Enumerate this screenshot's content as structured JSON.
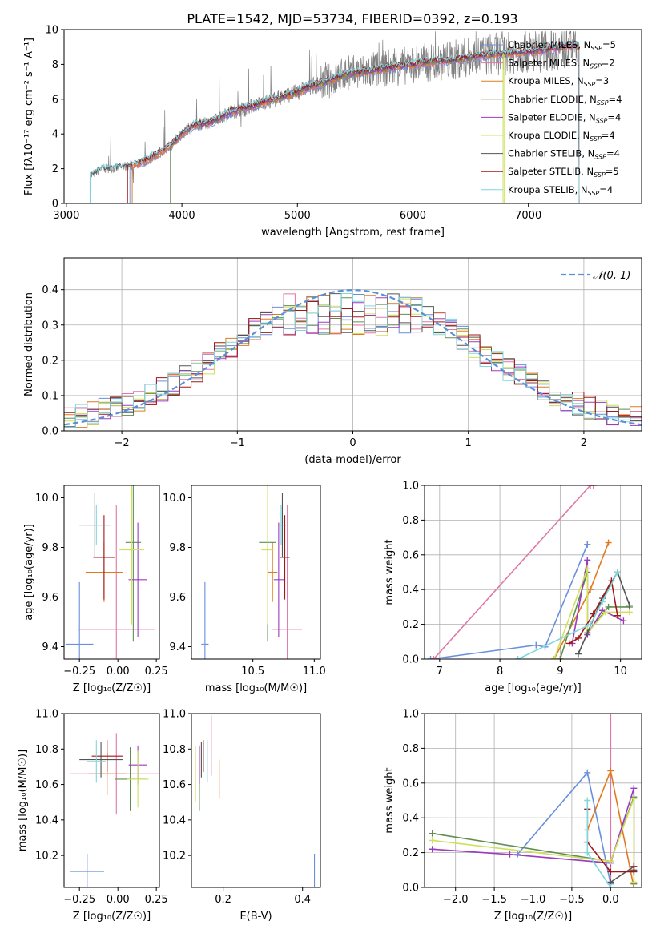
{
  "title": "PLATE=1542, MJD=53734, FIBERID=0392, z=0.193",
  "colors": {
    "chabrier_miles": "#6a8fdc",
    "salpeter_miles": "#e077a7",
    "kroupa_miles": "#e07a1f",
    "chabrier_elodie": "#5f8f50",
    "salpeter_elodie": "#9b3bc0",
    "kroupa_elodie": "#cfe05a",
    "chabrier_stelib": "#555555",
    "salpeter_stelib": "#a01818",
    "kroupa_stelib": "#7fd6dc",
    "spectrum": "#808080",
    "normal": "#5b8fd6"
  },
  "chart_data": [
    {
      "type": "line",
      "xlabel": "wavelength [Angstrom, rest frame]",
      "ylabel": "Flux [fλ10⁻¹⁷ erg cm⁻² s⁻¹ A⁻¹]",
      "xlim": [
        2980,
        7980
      ],
      "ylim": [
        0,
        10
      ],
      "xticks": [
        "3000",
        "4000",
        "5000",
        "6000",
        "7000"
      ],
      "yticks": [
        "0",
        "2",
        "4",
        "6",
        "8",
        "10"
      ],
      "grid": false,
      "legend_position": "right",
      "legend": [
        "Chabrier MILES, N_SSP=5",
        "Salpeter MILES, N_SSP=2",
        "Kroupa MILES, N_SSP=3",
        "Chabrier ELODIE, N_SSP=4",
        "Salpeter ELODIE, N_SSP=4",
        "Kroupa ELODIE, N_SSP=4",
        "Chabrier STELIB, N_SSP=4",
        "Salpeter STELIB, N_SSP=5",
        "Kroupa STELIB, N_SSP=4"
      ],
      "spectrum_x": [
        3200,
        3300,
        3400,
        3500,
        3600,
        3700,
        3800,
        3900,
        4000,
        4100,
        4200,
        4300,
        4400,
        4500,
        4600,
        4700,
        4800,
        4900,
        5000,
        5100,
        5200,
        5300,
        5400,
        5500,
        5600,
        5700,
        5800,
        5900,
        6000,
        6100,
        6200,
        6300,
        6400,
        6500,
        6600,
        6700,
        6800,
        6900,
        7000,
        7100,
        7200,
        7300,
        7400,
        7500
      ],
      "spectrum_y": [
        1.5,
        2.0,
        2.0,
        2.1,
        2.2,
        2.5,
        2.9,
        3.3,
        4.0,
        4.5,
        4.6,
        4.8,
        5.2,
        5.4,
        5.6,
        5.8,
        6.0,
        6.2,
        6.4,
        6.7,
        6.9,
        7.1,
        7.4,
        7.5,
        7.6,
        7.7,
        7.8,
        7.9,
        8.0,
        8.1,
        8.2,
        8.2,
        8.3,
        8.4,
        8.5,
        8.6,
        8.6,
        8.7,
        8.7,
        8.8,
        8.9,
        9.0,
        9.1,
        9.1
      ],
      "model_start": [
        3550,
        3560,
        3570,
        3900,
        3905,
        6780,
        3210,
        3530,
        3205
      ],
      "model_end": [
        7440,
        7440,
        7440,
        7440,
        7440,
        6790,
        7440,
        7440,
        7440
      ]
    },
    {
      "type": "histogram",
      "xlabel": "(data-model)/error",
      "ylabel": "Normed distribution",
      "xlim": [
        -2.5,
        2.5
      ],
      "ylim": [
        0,
        0.49
      ],
      "xticks": [
        "−2",
        "−1",
        "0",
        "1",
        "2"
      ],
      "yticks": [
        "0.0",
        "0.1",
        "0.2",
        "0.3",
        "0.4"
      ],
      "grid": true,
      "legend": [
        "𝒩(0, 1)"
      ],
      "bin_width": 0.1
    },
    {
      "type": "scatter",
      "xlabel": "Z [log₁₀(Z/Z☉)]",
      "ylabel": "age  [log₁₀(age/yr)]",
      "xlim": [
        -0.35,
        0.27
      ],
      "ylim": [
        9.35,
        10.05
      ],
      "xticks": [
        "−0.25",
        "0.00",
        "0.25"
      ],
      "yticks": [
        "9.4",
        "9.6",
        "9.8",
        "10.0"
      ],
      "points": [
        {
          "x": -0.25,
          "y": 9.41,
          "xerr": 0.09,
          "yerr": 0.25
        },
        {
          "x": -0.01,
          "y": 9.47,
          "xerr": 0.25,
          "yerr": 0.5
        },
        {
          "x": -0.09,
          "y": 9.7,
          "xerr": 0.12,
          "yerr": 0.12
        },
        {
          "x": 0.1,
          "y": 9.82,
          "xerr": 0.05,
          "yerr": 0.4
        },
        {
          "x": 0.13,
          "y": 9.67,
          "xerr": 0.06,
          "yerr": 0.23
        },
        {
          "x": 0.09,
          "y": 9.79,
          "xerr": 0.08,
          "yerr": 0.3
        },
        {
          "x": -0.15,
          "y": 9.89,
          "xerr": 0.1,
          "yerr": 0.13
        },
        {
          "x": -0.09,
          "y": 9.76,
          "xerr": 0.07,
          "yerr": 0.17
        },
        {
          "x": -0.14,
          "y": 9.89,
          "xerr": 0.08,
          "yerr": 0.08
        }
      ]
    },
    {
      "type": "scatter",
      "xlabel": "mass [log₁₀(M/M☉)]",
      "ylabel": "",
      "xlim": [
        10.0,
        11.05
      ],
      "ylim": [
        9.35,
        10.05
      ],
      "xticks": [
        "10.5",
        "11.0"
      ],
      "yticks": [
        "9.4",
        "9.6",
        "9.8",
        "10.0"
      ],
      "points": [
        {
          "x": 10.11,
          "y": 9.41,
          "xerr": 0.03,
          "yerr": 0.25
        },
        {
          "x": 10.78,
          "y": 9.47,
          "xerr": 0.12,
          "yerr": 0.5
        },
        {
          "x": 10.66,
          "y": 9.7,
          "xerr": 0.04,
          "yerr": 0.12
        },
        {
          "x": 10.62,
          "y": 9.82,
          "xerr": 0.07,
          "yerr": 0.4
        },
        {
          "x": 10.71,
          "y": 9.67,
          "xerr": 0.04,
          "yerr": 0.23
        },
        {
          "x": 10.62,
          "y": 9.79,
          "xerr": 0.05,
          "yerr": 0.3
        },
        {
          "x": 10.74,
          "y": 9.89,
          "xerr": 0.03,
          "yerr": 0.13
        },
        {
          "x": 10.76,
          "y": 9.76,
          "xerr": 0.04,
          "yerr": 0.17
        },
        {
          "x": 10.73,
          "y": 9.89,
          "xerr": 0.03,
          "yerr": 0.08
        }
      ]
    },
    {
      "type": "line",
      "xlabel": "age  [log₁₀(age/yr)]",
      "ylabel": "mass weight",
      "xlim": [
        6.75,
        10.35
      ],
      "ylim": [
        0,
        1
      ],
      "xticks": [
        "7",
        "8",
        "9",
        "10"
      ],
      "yticks": [
        "0.0",
        "0.2",
        "0.4",
        "0.6",
        "0.8",
        "1.0"
      ],
      "grid": true,
      "series": [
        {
          "x": [
            6.85,
            8.6,
            8.75,
            9.45,
            9.45
          ],
          "y": [
            0.0,
            0.08,
            0.07,
            0.66,
            0.66
          ]
        },
        {
          "x": [
            6.9,
            9.5,
            9.55
          ],
          "y": [
            0.0,
            1.0,
            1.0
          ]
        },
        {
          "x": [
            8.9,
            9.5,
            9.8
          ],
          "y": [
            0.0,
            0.4,
            0.67
          ]
        },
        {
          "x": [
            9.0,
            9.45,
            9.45,
            9.8,
            10.15
          ],
          "y": [
            0.0,
            0.5,
            0.15,
            0.3,
            0.3
          ]
        },
        {
          "x": [
            9.2,
            9.45,
            9.45,
            9.7,
            10.05
          ],
          "y": [
            0.09,
            0.57,
            0.14,
            0.28,
            0.22
          ]
        },
        {
          "x": [
            8.9,
            9.45,
            9.45,
            9.75,
            10.15
          ],
          "y": [
            0.0,
            0.52,
            0.15,
            0.27,
            0.27
          ]
        },
        {
          "x": [
            9.3,
            9.45,
            9.7,
            9.95,
            10.15
          ],
          "y": [
            0.03,
            0.15,
            0.35,
            0.5,
            0.31
          ]
        },
        {
          "x": [
            9.15,
            9.3,
            9.55,
            9.85,
            9.95
          ],
          "y": [
            0.09,
            0.12,
            0.26,
            0.45,
            0.25
          ]
        },
        {
          "x": [
            8.3,
            9.5,
            9.7,
            9.95
          ],
          "y": [
            0.0,
            0.2,
            0.33,
            0.5
          ]
        }
      ]
    },
    {
      "type": "scatter",
      "xlabel": "Z [log₁₀(Z/Z☉)]",
      "ylabel": "mass [log₁₀(M/M☉)]",
      "xlim": [
        -0.35,
        0.27
      ],
      "ylim": [
        10.02,
        11.0
      ],
      "xticks": [
        "−0.25",
        "0.00",
        "0.25"
      ],
      "yticks": [
        "10.2",
        "10.4",
        "10.6",
        "10.8",
        "11.0"
      ],
      "points": [
        {
          "x": -0.2,
          "y": 10.11,
          "xerr": 0.11,
          "yerr": 0.1
        },
        {
          "x": -0.01,
          "y": 10.66,
          "xerr": 0.3,
          "yerr": 0.23
        },
        {
          "x": -0.07,
          "y": 10.66,
          "xerr": 0.12,
          "yerr": 0.12
        },
        {
          "x": 0.08,
          "y": 10.63,
          "xerr": 0.1,
          "yerr": 0.18
        },
        {
          "x": 0.13,
          "y": 10.71,
          "xerr": 0.06,
          "yerr": 0.11
        },
        {
          "x": 0.13,
          "y": 10.63,
          "xerr": 0.07,
          "yerr": 0.16
        },
        {
          "x": -0.11,
          "y": 10.74,
          "xerr": 0.14,
          "yerr": 0.1
        },
        {
          "x": -0.07,
          "y": 10.76,
          "xerr": 0.1,
          "yerr": 0.09
        },
        {
          "x": -0.14,
          "y": 10.73,
          "xerr": 0.06,
          "yerr": 0.12
        }
      ]
    },
    {
      "type": "scatter",
      "xlabel": "E(B-V)",
      "ylabel": "",
      "xlim": [
        0.12,
        0.445
      ],
      "ylim": [
        10.02,
        11.0
      ],
      "xticks": [
        "0.2",
        "0.4"
      ],
      "yticks": [
        "10.2",
        "10.4",
        "10.6",
        "10.8",
        "11.0"
      ],
      "points": [
        {
          "x": 0.43,
          "y": 10.11,
          "xerr": 0.0,
          "yerr": 0.1
        },
        {
          "x": 0.17,
          "y": 10.82,
          "xerr": 0.0,
          "yerr": 0.17
        },
        {
          "x": 0.19,
          "y": 10.63,
          "xerr": 0.0,
          "yerr": 0.11
        },
        {
          "x": 0.14,
          "y": 10.63,
          "xerr": 0.0,
          "yerr": 0.18
        },
        {
          "x": 0.14,
          "y": 10.71,
          "xerr": 0.0,
          "yerr": 0.11
        },
        {
          "x": 0.13,
          "y": 10.66,
          "xerr": 0.0,
          "yerr": 0.16
        },
        {
          "x": 0.145,
          "y": 10.74,
          "xerr": 0.0,
          "yerr": 0.1
        },
        {
          "x": 0.15,
          "y": 10.76,
          "xerr": 0.0,
          "yerr": 0.09
        },
        {
          "x": 0.16,
          "y": 10.73,
          "xerr": 0.0,
          "yerr": 0.12
        }
      ]
    },
    {
      "type": "line",
      "xlabel": "Z [log₁₀(Z/Z☉)]",
      "ylabel": "mass weight",
      "xlim": [
        -2.4,
        0.4
      ],
      "ylim": [
        0,
        1
      ],
      "xticks": [
        "−2.0",
        "−1.5",
        "−1.0",
        "−0.5",
        "0.0"
      ],
      "yticks": [
        "0.0",
        "0.2",
        "0.4",
        "0.6",
        "0.8",
        "1.0"
      ],
      "grid": true,
      "series": [
        {
          "x": [
            -1.2,
            -0.3,
            0.0,
            0.0
          ],
          "y": [
            0.19,
            0.66,
            0.02,
            0.0
          ]
        },
        {
          "x": [
            0.0,
            0.0
          ],
          "y": [
            0.0,
            1.0
          ]
        },
        {
          "x": [
            -0.3,
            0.0,
            0.3
          ],
          "y": [
            0.33,
            0.67,
            0.0
          ]
        },
        {
          "x": [
            -2.3,
            0.0,
            0.3,
            0.3
          ],
          "y": [
            0.31,
            0.15,
            0.52,
            0.02
          ]
        },
        {
          "x": [
            -2.3,
            -1.3,
            0.0,
            0.3,
            0.3
          ],
          "y": [
            0.22,
            0.19,
            0.14,
            0.57,
            0.09
          ]
        },
        {
          "x": [
            -2.3,
            0.0,
            0.3,
            0.3
          ],
          "y": [
            0.27,
            0.15,
            0.51,
            0.03
          ]
        },
        {
          "x": [
            0.0,
            0.3,
            0.3
          ],
          "y": [
            0.03,
            0.12,
            0.1
          ]
        },
        {
          "x": [
            -0.3,
            -0.3,
            0.0,
            0.3,
            0.3
          ],
          "y": [
            0.45,
            0.26,
            0.09,
            0.09,
            0.12
          ]
        },
        {
          "x": [
            -0.3,
            -0.3,
            0.0,
            0.0
          ],
          "y": [
            0.5,
            0.2,
            0.0,
            0.0
          ]
        }
      ]
    }
  ]
}
